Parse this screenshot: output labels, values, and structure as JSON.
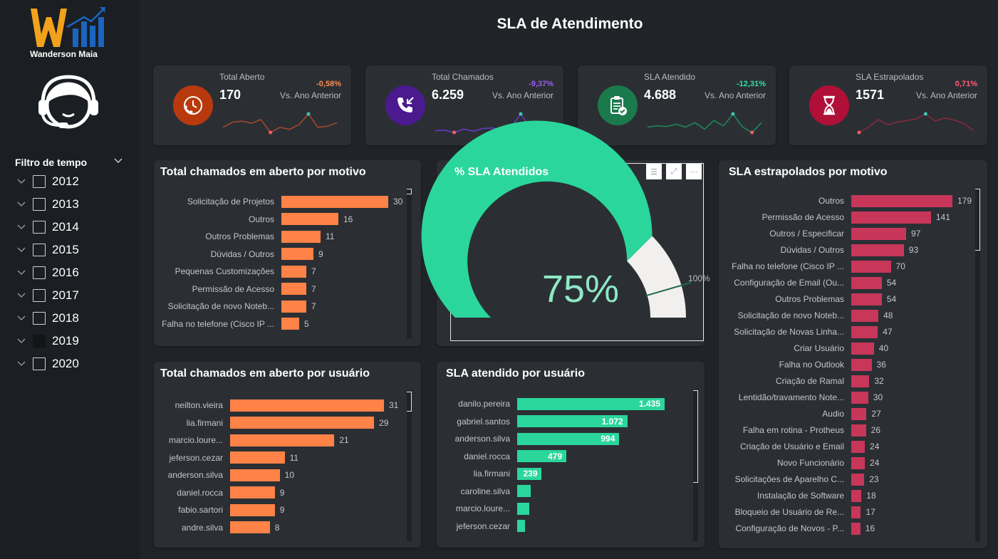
{
  "sidebar": {
    "brand": "Wanderson Maia",
    "filter_title": "Filtro de tempo",
    "years": [
      {
        "label": "2012",
        "checked": false
      },
      {
        "label": "2013",
        "checked": false
      },
      {
        "label": "2014",
        "checked": false
      },
      {
        "label": "2015",
        "checked": false
      },
      {
        "label": "2016",
        "checked": false
      },
      {
        "label": "2017",
        "checked": false
      },
      {
        "label": "2018",
        "checked": false
      },
      {
        "label": "2019",
        "checked": true
      },
      {
        "label": "2020",
        "checked": false
      }
    ]
  },
  "header": {
    "title": "SLA de Atendimento"
  },
  "kpis": [
    {
      "label": "Total Aberto",
      "value": "170",
      "delta": "-0,58%",
      "delta_color": "#ff8a4c",
      "vs": "Vs. Ano Anterior",
      "icon": "phone-clock-icon",
      "icon_bg": "#b83a0c",
      "spark_color": "#a8482a",
      "spark": [
        3,
        4,
        4.2,
        3.8,
        4.5,
        2,
        3,
        2.6,
        3.5,
        5.6,
        3,
        3.2,
        3.9
      ]
    },
    {
      "label": "Total Chamados",
      "value": "6.259",
      "delta": "-9,37%",
      "delta_color": "#9b5cf0",
      "vs": "Vs. Ano Anterior",
      "icon": "incoming-call-icon",
      "icon_bg": "#4a1a8e",
      "spark_color": "#6a3bc8",
      "spark": [
        2.5,
        2.6,
        2.2,
        2.8,
        2.4,
        2.9,
        3,
        2.7,
        3.2,
        5.5,
        3,
        2.2,
        3
      ]
    },
    {
      "label": "SLA Atendido",
      "value": "4.688",
      "delta": "-12,31%",
      "delta_color": "#2fe0a0",
      "vs": "Vs. Ano Anterior",
      "icon": "clipboard-check-icon",
      "icon_bg": "#1a7a4c",
      "spark_color": "#1f8a57",
      "spark": [
        3,
        3.2,
        3.1,
        3.5,
        3,
        3.8,
        2.6,
        4.2,
        3.2,
        5.4,
        3,
        2,
        3.8
      ]
    },
    {
      "label": "SLA Estrapolados",
      "value": "1571",
      "delta": "0,71%",
      "delta_color": "#ff5c7a",
      "vs": "Vs. Ano Anterior",
      "icon": "hourglass-icon",
      "icon_bg": "#b01038",
      "spark_color": "#8a2a3a",
      "spark": [
        2,
        3,
        4.5,
        3.5,
        4,
        4.3,
        4.6,
        5.6,
        4.2,
        4.8,
        4.4,
        3.8,
        2.4
      ]
    }
  ],
  "panel_motivo": {
    "title": "Total chamados em aberto por motivo",
    "color": "#ff8247",
    "items": [
      {
        "label": "Solicitação de Projetos",
        "value": 30
      },
      {
        "label": "Outros",
        "value": 16
      },
      {
        "label": "Outros Problemas",
        "value": 11
      },
      {
        "label": "Dúvidas / Outros",
        "value": 9
      },
      {
        "label": "Pequenas Customizações",
        "value": 7
      },
      {
        "label": "Permissão de Acesso",
        "value": 7
      },
      {
        "label": "Solicitação de novo Noteb...",
        "value": 7
      },
      {
        "label": "Falha no telefone (Cisco IP ...",
        "value": 5
      }
    ]
  },
  "panel_gauge": {
    "title": "% SLA Atendidos",
    "value_label": "75%",
    "value": 0.75,
    "target": 0.91,
    "max_label": "100%",
    "fill_color": "#2bd69c",
    "rest_color": "#f2f0ee",
    "target_color": "#1e6b4a"
  },
  "panel_usuario": {
    "title": "Total chamados em aberto por usuário",
    "color": "#ff8247",
    "items": [
      {
        "label": "neilton.vieira",
        "value": 31
      },
      {
        "label": "lia.firmani",
        "value": 29
      },
      {
        "label": "marcio.loure...",
        "value": 21
      },
      {
        "label": "jeferson.cezar",
        "value": 11
      },
      {
        "label": "anderson.silva",
        "value": 10
      },
      {
        "label": "daniel.rocca",
        "value": 9
      },
      {
        "label": "fabio.sartori",
        "value": 9
      },
      {
        "label": "andre.silva",
        "value": 8
      }
    ]
  },
  "panel_sla_usuario": {
    "title": "SLA atendido por usuário",
    "color": "#2bd69c",
    "items": [
      {
        "label": "danilo.pereira",
        "value": 1435,
        "display": "1.435"
      },
      {
        "label": "gabriel.santos",
        "value": 1072,
        "display": "1.072"
      },
      {
        "label": "anderson.silva",
        "value": 994,
        "display": "994"
      },
      {
        "label": "daniel.rocca",
        "value": 479,
        "display": "479"
      },
      {
        "label": "lia.firmani",
        "value": 239,
        "display": "239"
      },
      {
        "label": "caroline.silva",
        "value": 130,
        "display": ""
      },
      {
        "label": "marcio.loure...",
        "value": 120,
        "display": ""
      },
      {
        "label": "jeferson.cezar",
        "value": 75,
        "display": ""
      }
    ]
  },
  "panel_estrapolados": {
    "title": "SLA estrapolados por motivo",
    "color": "#c8365a",
    "items": [
      {
        "label": "Outros",
        "value": 179
      },
      {
        "label": "Permissão de Acesso",
        "value": 141
      },
      {
        "label": "Outros / Especificar",
        "value": 97
      },
      {
        "label": "Dúvidas / Outros",
        "value": 93
      },
      {
        "label": "Falha no telefone (Cisco IP ...",
        "value": 70
      },
      {
        "label": "Configuração de Email (Ou...",
        "value": 54
      },
      {
        "label": "Outros Problemas",
        "value": 54
      },
      {
        "label": "Solicitação de novo Noteb...",
        "value": 48
      },
      {
        "label": "Solicitação de Novas Linha...",
        "value": 47
      },
      {
        "label": "Criar Usuário",
        "value": 40
      },
      {
        "label": "Falha no Outlook",
        "value": 36
      },
      {
        "label": "Criação de Ramal",
        "value": 32
      },
      {
        "label": "Lentidão/travamento Note...",
        "value": 30
      },
      {
        "label": "Audio",
        "value": 27
      },
      {
        "label": "Falha em rotina - Protheus",
        "value": 26
      },
      {
        "label": "Criação de Usuário e Email",
        "value": 24
      },
      {
        "label": "Novo Funcionário",
        "value": 24
      },
      {
        "label": "Solicitações de Aparelho C...",
        "value": 23
      },
      {
        "label": "Instalação de Software",
        "value": 18
      },
      {
        "label": "Bloqueio de Usuário de Re...",
        "value": 17
      },
      {
        "label": "Configuração de Novos - P...",
        "value": 16
      }
    ]
  }
}
